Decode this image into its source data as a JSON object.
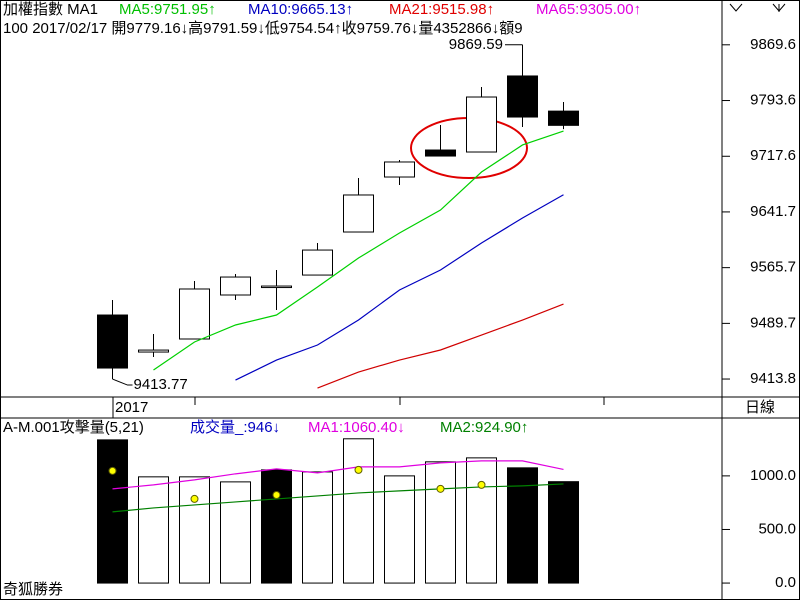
{
  "header": {
    "items": [
      {
        "text": "加權指數 MA1",
        "color": "#000000"
      },
      {
        "text": "MA5:9751.95↑",
        "color": "#00c000"
      },
      {
        "text": "MA10:9665.13↑",
        "color": "#0000c0"
      },
      {
        "text": "MA21:9515.98↑",
        "color": "#e00000"
      },
      {
        "text": "MA65:9305.00↑",
        "color": "#e000e0"
      }
    ],
    "line2": "100 2017/02/17 開9779.16↓高9791.59↓低9754.54↑收9759.76↓量4352866↓額9"
  },
  "chart_data": [
    {
      "type": "candlestick",
      "categories": [
        null,
        null,
        null,
        null,
        null,
        null,
        null,
        null,
        null,
        null,
        null,
        null
      ],
      "x_label": "2017",
      "period": "日線",
      "open": [
        9501.1,
        9450.6,
        9468.4,
        9528.4,
        9540.6,
        9555.6,
        9614.3,
        9689.3,
        9726.1,
        9723.4,
        9827.1,
        9779.16
      ],
      "high": [
        9521.5,
        9475.2,
        9547.5,
        9557.0,
        9562.5,
        9599.3,
        9687.9,
        9712.5,
        9760.2,
        9812.1,
        9869.59,
        9791.59
      ],
      "low": [
        9413.77,
        9443.8,
        9468.4,
        9521.5,
        9507.9,
        9555.6,
        9614.3,
        9678.4,
        9717.9,
        9723.4,
        9757.5,
        9754.54
      ],
      "close": [
        9428.8,
        9453.3,
        9536.6,
        9552.9,
        9540.6,
        9589.7,
        9664.8,
        9709.8,
        9717.9,
        9798.4,
        9771.1,
        9759.76
      ],
      "series": [
        {
          "color": "#00d000",
          "values": [
            null,
            9426.1,
            9464.3,
            9487.5,
            9501.1,
            9539.3,
            9578.8,
            9612.9,
            9644.3,
            9696.1,
            9733.0,
            9751.95
          ]
        },
        {
          "color": "#0000c0",
          "values": [
            null,
            null,
            null,
            9412.4,
            9439.7,
            9460.2,
            9494.3,
            9535.2,
            9562.5,
            9599.3,
            9633.4,
            9665.13
          ]
        },
        {
          "color": "#d00000",
          "values": [
            null,
            null,
            null,
            null,
            null,
            9401.5,
            9423.3,
            9439.7,
            9453.4,
            9473.8,
            9494.3,
            9515.98
          ]
        }
      ],
      "max_label": 9869.59,
      "min_label": 9413.77,
      "ylim": [
        9389.3,
        9930.7
      ],
      "yticks": [
        9413.8,
        9489.7,
        9565.7,
        9641.7,
        9717.6,
        9793.6,
        9869.6
      ]
    },
    {
      "type": "bar",
      "title_items": [
        {
          "text": "A-M.001攻擊量(5,21)",
          "color": "#000000"
        },
        {
          "text": "成交量_:946↓",
          "color": "#0000c0"
        },
        {
          "text": "MA1:1060.40↓",
          "color": "#e000e0"
        },
        {
          "text": "MA2:924.90↑",
          "color": "#008000"
        }
      ],
      "values": [
        1336,
        991,
        991,
        944,
        1056,
        1037,
        1346,
        1000,
        1131,
        1168,
        1075,
        946
      ],
      "colors": [
        "#000000",
        "#ffffff",
        "#ffffff",
        "#ffffff",
        "#000000",
        "#ffffff",
        "#ffffff",
        "#ffffff",
        "#ffffff",
        "#ffffff",
        "#000000",
        "#000000"
      ],
      "dots": {
        "color": "#ffff00",
        "values": [
          1047,
          null,
          785,
          null,
          822,
          null,
          1056,
          null,
          879,
          916,
          null,
          null
        ]
      },
      "series": [
        {
          "color": "#e000e0",
          "values": [
            879,
            916,
            963,
            1019,
            1065,
            1028,
            1084,
            1084,
            1121,
            1140,
            1140,
            1060.4
          ]
        },
        {
          "color": "#008000",
          "values": [
            664,
            701,
            729,
            757,
            785,
            813,
            841,
            860,
            879,
            897,
            907,
            924.9
          ]
        }
      ],
      "ylim": [
        -130,
        1540
      ],
      "yticks": [
        {
          "value": 0,
          "label": "0.0"
        },
        {
          "value": 500,
          "label": "500.0"
        },
        {
          "value": 1000,
          "label": "1000.0"
        }
      ]
    }
  ],
  "footer": "奇狐勝券"
}
